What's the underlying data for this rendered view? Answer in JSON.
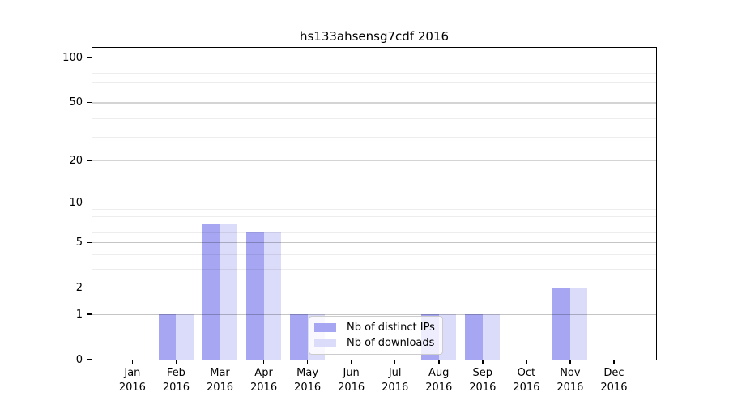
{
  "chart_data": {
    "type": "bar",
    "title": "hs133ahsensg7cdf 2016",
    "categories": [
      "Jan",
      "Feb",
      "Mar",
      "Apr",
      "May",
      "Jun",
      "Jul",
      "Aug",
      "Sep",
      "Oct",
      "Nov",
      "Dec"
    ],
    "category_year": "2016",
    "series": [
      {
        "name": "Nb of distinct IPs",
        "color": "#a6a6f2",
        "values": [
          0,
          1,
          7,
          6,
          1,
          0,
          0,
          1,
          1,
          0,
          2,
          0
        ]
      },
      {
        "name": "Nb of downloads",
        "color": "#dbdbfa",
        "values": [
          0,
          1,
          7,
          6,
          1,
          0,
          0,
          1,
          1,
          0,
          2,
          0
        ]
      }
    ],
    "y_axis": {
      "scale": "log10(1 + value)",
      "major_ticks": [
        100,
        50,
        20,
        10,
        5,
        2,
        1,
        0
      ],
      "minor_gridlines": [
        1,
        2,
        3,
        4,
        5,
        6,
        7,
        8,
        9,
        19,
        29,
        39,
        49,
        59,
        69,
        79,
        89
      ],
      "top_value": 117
    },
    "legend": {
      "entries": [
        "Nb of distinct IPs",
        "Nb of downloads"
      ],
      "position": "lower center"
    },
    "grid": "on, drawn above bars"
  }
}
